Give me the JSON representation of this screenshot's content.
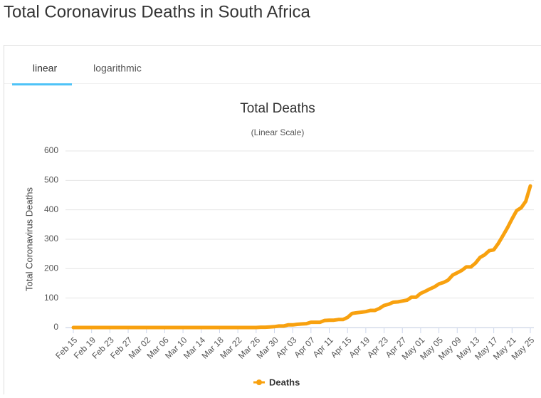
{
  "page_title": "Total Coronavirus Deaths in South Africa",
  "tabs": [
    "linear",
    "logarithmic"
  ],
  "chart_data": {
    "type": "line",
    "title": "Total Deaths",
    "subtitle": "(Linear Scale)",
    "y_label": "Total Coronavirus Deaths",
    "categories": [
      "Feb 15",
      null,
      null,
      null,
      "Feb 19",
      null,
      null,
      null,
      "Feb 23",
      null,
      null,
      null,
      "Feb 27",
      null,
      null,
      null,
      "Mar 02",
      null,
      null,
      null,
      "Mar 06",
      null,
      null,
      null,
      "Mar 10",
      null,
      null,
      null,
      "Mar 14",
      null,
      null,
      null,
      "Mar 18",
      null,
      null,
      null,
      "Mar 22",
      null,
      null,
      null,
      "Mar 26",
      null,
      null,
      null,
      "Mar 30",
      null,
      null,
      null,
      "Apr 03",
      null,
      null,
      null,
      "Apr 07",
      null,
      null,
      null,
      "Apr 11",
      null,
      null,
      null,
      "Apr 15",
      null,
      null,
      null,
      "Apr 19",
      null,
      null,
      null,
      "Apr 23",
      null,
      null,
      null,
      "Apr 27",
      null,
      null,
      null,
      "May 01",
      null,
      null,
      null,
      "May 05",
      null,
      null,
      null,
      "May 09",
      null,
      null,
      null,
      "May 13",
      null,
      null,
      null,
      "May 17",
      null,
      null,
      null,
      "May 21",
      null,
      null,
      null,
      "May 25"
    ],
    "series": [
      {
        "name": "Deaths",
        "color": "#f8a10f",
        "values": [
          0,
          0,
          0,
          0,
          0,
          0,
          0,
          0,
          0,
          0,
          0,
          0,
          0,
          0,
          0,
          0,
          0,
          0,
          0,
          0,
          0,
          0,
          0,
          0,
          0,
          0,
          0,
          0,
          0,
          0,
          0,
          0,
          0,
          0,
          0,
          0,
          0,
          0,
          0,
          0,
          0,
          1,
          1,
          2,
          3,
          5,
          5,
          9,
          9,
          11,
          12,
          13,
          18,
          18,
          18,
          24,
          25,
          25,
          27,
          27,
          34,
          48,
          50,
          52,
          54,
          58,
          58,
          65,
          75,
          79,
          86,
          87,
          90,
          93,
          103,
          103,
          116,
          123,
          131,
          138,
          148,
          153,
          161,
          178,
          186,
          194,
          206,
          206,
          219,
          238,
          247,
          261,
          264,
          286,
          312,
          339,
          369,
          397,
          407,
          429,
          481
        ]
      }
    ],
    "ylim": [
      0,
      600
    ],
    "yticks": [
      0,
      100,
      200,
      300,
      400,
      500,
      600
    ],
    "grid": true
  }
}
